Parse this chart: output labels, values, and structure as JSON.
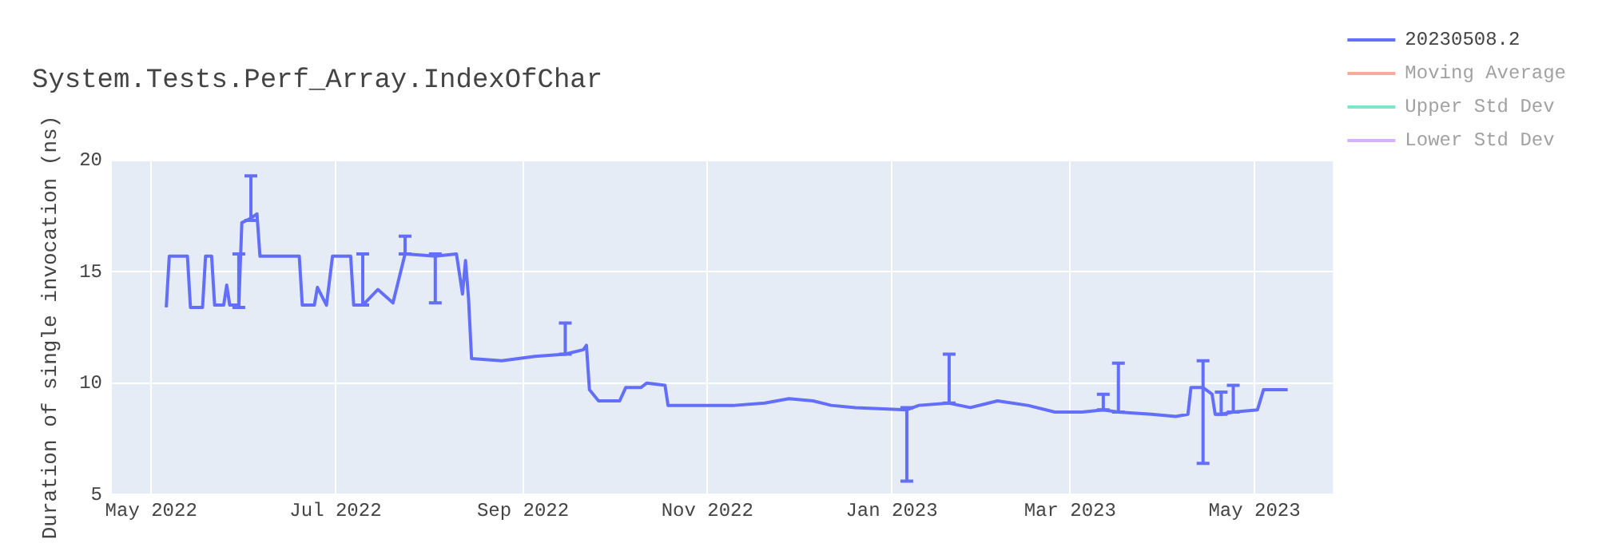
{
  "chart_data": {
    "type": "line",
    "title": "System.Tests.Perf_Array.IndexOfChar",
    "ylabel": "Duration of single invocation (ns)",
    "x": [
      "2022-05-06",
      "2022-05-07",
      "2022-05-13",
      "2022-05-14",
      "2022-05-18",
      "2022-05-19",
      "2022-05-21",
      "2022-05-22",
      "2022-05-25",
      "2022-05-26",
      "2022-05-27",
      "2022-05-30",
      "2022-05-31",
      "2022-06-03",
      "2022-06-05",
      "2022-06-06",
      "2022-06-19",
      "2022-06-20",
      "2022-06-24",
      "2022-06-25",
      "2022-06-28",
      "2022-06-30",
      "2022-07-06",
      "2022-07-07",
      "2022-07-10",
      "2022-07-15",
      "2022-07-20",
      "2022-07-24",
      "2022-08-03",
      "2022-08-10",
      "2022-08-12",
      "2022-08-13",
      "2022-08-14",
      "2022-08-15",
      "2022-08-25",
      "2022-09-05",
      "2022-09-15",
      "2022-09-21",
      "2022-09-22",
      "2022-09-23",
      "2022-09-26",
      "2022-10-03",
      "2022-10-05",
      "2022-10-10",
      "2022-10-12",
      "2022-10-18",
      "2022-10-19",
      "2022-10-26",
      "2022-11-10",
      "2022-11-20",
      "2022-11-28",
      "2022-12-06",
      "2022-12-12",
      "2022-12-20",
      "2023-01-06",
      "2023-01-10",
      "2023-01-20",
      "2023-01-27",
      "2023-02-05",
      "2023-02-15",
      "2023-02-24",
      "2023-03-05",
      "2023-03-12",
      "2023-03-17",
      "2023-03-28",
      "2023-04-05",
      "2023-04-09",
      "2023-04-10",
      "2023-04-14",
      "2023-04-17",
      "2023-04-18",
      "2023-04-20",
      "2023-04-24",
      "2023-05-02",
      "2023-05-04",
      "2023-05-12"
    ],
    "series": [
      {
        "name": "20230508.2",
        "color": "#636efa",
        "values": [
          13.4,
          15.7,
          15.7,
          13.4,
          13.4,
          15.7,
          15.7,
          13.5,
          13.5,
          14.4,
          13.5,
          13.5,
          17.2,
          17.4,
          17.6,
          15.7,
          15.7,
          13.5,
          13.5,
          14.3,
          13.5,
          15.7,
          15.7,
          13.5,
          13.5,
          14.2,
          13.6,
          15.8,
          15.7,
          15.8,
          14.0,
          15.5,
          13.8,
          11.1,
          11.0,
          11.2,
          11.3,
          11.5,
          11.7,
          9.7,
          9.2,
          9.2,
          9.8,
          9.8,
          10.0,
          9.9,
          9.0,
          9.0,
          9.0,
          9.1,
          9.3,
          9.2,
          9.0,
          8.9,
          8.8,
          9.0,
          9.1,
          8.9,
          9.2,
          9.0,
          8.7,
          8.7,
          8.8,
          8.7,
          8.6,
          8.5,
          8.6,
          9.8,
          9.8,
          9.5,
          8.6,
          8.6,
          8.7,
          8.8,
          9.7,
          9.7
        ],
        "errors": [
          null,
          null,
          null,
          null,
          null,
          null,
          null,
          null,
          null,
          null,
          null,
          [
            13.4,
            15.8
          ],
          null,
          [
            17.3,
            19.3
          ],
          null,
          null,
          null,
          null,
          null,
          null,
          null,
          null,
          null,
          null,
          [
            13.5,
            15.8
          ],
          null,
          null,
          [
            15.8,
            16.6
          ],
          [
            13.6,
            15.8
          ],
          null,
          null,
          null,
          null,
          null,
          null,
          null,
          [
            11.3,
            12.7
          ],
          null,
          null,
          null,
          null,
          null,
          null,
          null,
          null,
          null,
          null,
          null,
          null,
          null,
          null,
          null,
          null,
          null,
          [
            5.6,
            8.9
          ],
          null,
          [
            9.1,
            11.3
          ],
          null,
          null,
          null,
          null,
          null,
          [
            8.8,
            9.5
          ],
          [
            8.7,
            10.9
          ],
          null,
          null,
          null,
          null,
          [
            6.4,
            11.0
          ],
          null,
          null,
          [
            8.6,
            9.6
          ],
          [
            8.7,
            9.9
          ],
          null,
          null,
          null
        ]
      },
      {
        "name": "Moving Average",
        "color": "#ef553b",
        "values": [
          null,
          null,
          null,
          null,
          null,
          null,
          null,
          null,
          null,
          null,
          null,
          null,
          null,
          null,
          null,
          null,
          null,
          null,
          null,
          null,
          null,
          null,
          null,
          null,
          null,
          null,
          null,
          null,
          null,
          null,
          null,
          null,
          null,
          null,
          null,
          null,
          null,
          null,
          null,
          null,
          null,
          null,
          null,
          null,
          null,
          null,
          null,
          null,
          null,
          null,
          null,
          null,
          null,
          null,
          null,
          null,
          null,
          null,
          null,
          null,
          null,
          null,
          null,
          null,
          null,
          null,
          null,
          null,
          null,
          null,
          null,
          null,
          null,
          null,
          null,
          null
        ]
      },
      {
        "name": "Upper Std Dev",
        "color": "#00cc96",
        "values": [
          null,
          null,
          null,
          null,
          null,
          null,
          null,
          null,
          null,
          null,
          null,
          null,
          null,
          null,
          null,
          null,
          null,
          null,
          null,
          null,
          null,
          null,
          null,
          null,
          null,
          null,
          null,
          null,
          null,
          null,
          null,
          null,
          null,
          null,
          null,
          null,
          null,
          null,
          null,
          null,
          null,
          null,
          null,
          null,
          null,
          null,
          null,
          null,
          null,
          null,
          null,
          null,
          null,
          null,
          null,
          null,
          null,
          null,
          null,
          null,
          null,
          null,
          null,
          null,
          null,
          null,
          null,
          null,
          null,
          null,
          null,
          null,
          null,
          null,
          null,
          null
        ]
      },
      {
        "name": "Lower Std Dev",
        "color": "#ab63fa",
        "values": [
          null,
          null,
          null,
          null,
          null,
          null,
          null,
          null,
          null,
          null,
          null,
          null,
          null,
          null,
          null,
          null,
          null,
          null,
          null,
          null,
          null,
          null,
          null,
          null,
          null,
          null,
          null,
          null,
          null,
          null,
          null,
          null,
          null,
          null,
          null,
          null,
          null,
          null,
          null,
          null,
          null,
          null,
          null,
          null,
          null,
          null,
          null,
          null,
          null,
          null,
          null,
          null,
          null,
          null,
          null,
          null,
          null,
          null,
          null,
          null,
          null,
          null,
          null,
          null,
          null,
          null,
          null,
          null,
          null,
          null,
          null,
          null,
          null,
          null,
          null,
          null
        ]
      }
    ],
    "xlim": [
      "2022-04-18",
      "2023-05-27"
    ],
    "xticks": [
      {
        "value": "2022-05-01",
        "label": "May 2022"
      },
      {
        "value": "2022-07-01",
        "label": "Jul 2022"
      },
      {
        "value": "2022-09-01",
        "label": "Sep 2022"
      },
      {
        "value": "2022-11-01",
        "label": "Nov 2022"
      },
      {
        "value": "2023-01-01",
        "label": "Jan 2023"
      },
      {
        "value": "2023-03-01",
        "label": "Mar 2023"
      },
      {
        "value": "2023-05-01",
        "label": "May 2023"
      }
    ],
    "ylim": [
      5,
      20
    ],
    "yticks": [
      5,
      10,
      15,
      20
    ],
    "grid": true,
    "legend": "top right",
    "line_style": "solid",
    "marker": "none"
  }
}
